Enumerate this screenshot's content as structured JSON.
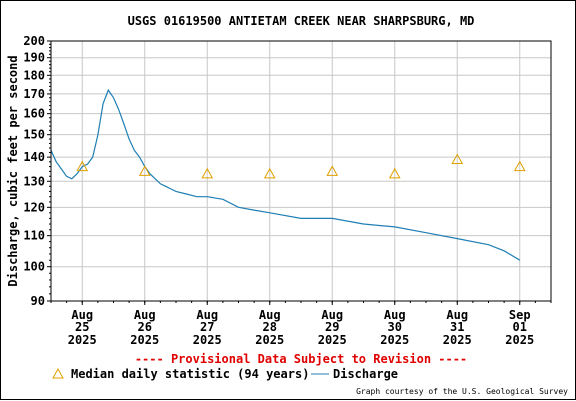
{
  "chart_data": {
    "type": "line",
    "title": "USGS 01619500 ANTIETAM CREEK NEAR SHARPSBURG, MD",
    "ylabel": "Discharge, cubic feet per second",
    "xlabel": "",
    "y_scale": "log",
    "ylim": [
      90,
      200
    ],
    "yticks": [
      90,
      100,
      110,
      120,
      130,
      140,
      150,
      160,
      170,
      180,
      190,
      200
    ],
    "xlim": [
      "2025-08-24T12:00",
      "2025-09-01T12:00"
    ],
    "x_tick_labels": [
      {
        "date": "2025-08-25",
        "month": "Aug",
        "day": "25",
        "year": "2025"
      },
      {
        "date": "2025-08-26",
        "month": "Aug",
        "day": "26",
        "year": "2025"
      },
      {
        "date": "2025-08-27",
        "month": "Aug",
        "day": "27",
        "year": "2025"
      },
      {
        "date": "2025-08-28",
        "month": "Aug",
        "day": "28",
        "year": "2025"
      },
      {
        "date": "2025-08-29",
        "month": "Aug",
        "day": "29",
        "year": "2025"
      },
      {
        "date": "2025-08-30",
        "month": "Aug",
        "day": "30",
        "year": "2025"
      },
      {
        "date": "2025-08-31",
        "month": "Aug",
        "day": "31",
        "year": "2025"
      },
      {
        "date": "2025-09-01",
        "month": "Sep",
        "day": "01",
        "year": "2025"
      }
    ],
    "grid": true,
    "legend_placement": "bottom-left",
    "series": [
      {
        "name": "Median daily statistic (94 years)",
        "kind": "marker",
        "color": "#e0a000",
        "x": [
          "2025-08-25",
          "2025-08-26",
          "2025-08-27",
          "2025-08-28",
          "2025-08-29",
          "2025-08-30",
          "2025-08-31",
          "2025-09-01"
        ],
        "values": [
          136,
          134,
          133,
          133,
          134,
          133,
          139,
          136
        ]
      },
      {
        "name": "Discharge",
        "kind": "line",
        "color": "#1f7fb4",
        "x": [
          "2025-08-24T12:00",
          "2025-08-24T14:00",
          "2025-08-24T16:00",
          "2025-08-24T18:00",
          "2025-08-24T20:00",
          "2025-08-24T22:00",
          "2025-08-25T00:00",
          "2025-08-25T02:00",
          "2025-08-25T04:00",
          "2025-08-25T06:00",
          "2025-08-25T08:00",
          "2025-08-25T10:00",
          "2025-08-25T12:00",
          "2025-08-25T14:00",
          "2025-08-25T16:00",
          "2025-08-25T18:00",
          "2025-08-25T20:00",
          "2025-08-25T22:00",
          "2025-08-26T00:00",
          "2025-08-26T02:00",
          "2025-08-26T04:00",
          "2025-08-26T06:00",
          "2025-08-26T08:00",
          "2025-08-26T10:00",
          "2025-08-26T12:00",
          "2025-08-26T16:00",
          "2025-08-26T20:00",
          "2025-08-27T00:00",
          "2025-08-27T06:00",
          "2025-08-27T12:00",
          "2025-08-27T18:00",
          "2025-08-28T00:00",
          "2025-08-28T12:00",
          "2025-08-29T00:00",
          "2025-08-29T12:00",
          "2025-08-30T00:00",
          "2025-08-30T12:00",
          "2025-08-31T00:00",
          "2025-08-31T12:00",
          "2025-08-31T18:00",
          "2025-09-01T00:00"
        ],
        "values": [
          143,
          138,
          135,
          132,
          131,
          133,
          136,
          137,
          140,
          150,
          165,
          172,
          168,
          162,
          155,
          148,
          143,
          140,
          136,
          133,
          131,
          129,
          128,
          127,
          126,
          125,
          124,
          124,
          123,
          120,
          119,
          118,
          116,
          116,
          114,
          113,
          111,
          109,
          107,
          105,
          102
        ]
      }
    ],
    "annotations": [
      "---- Provisional Data Subject to Revision ----"
    ],
    "legend": {
      "median_label": "Median daily statistic (94 years)",
      "discharge_label": "Discharge"
    },
    "credit": "Graph courtesy of the U.S. Geological Survey"
  }
}
